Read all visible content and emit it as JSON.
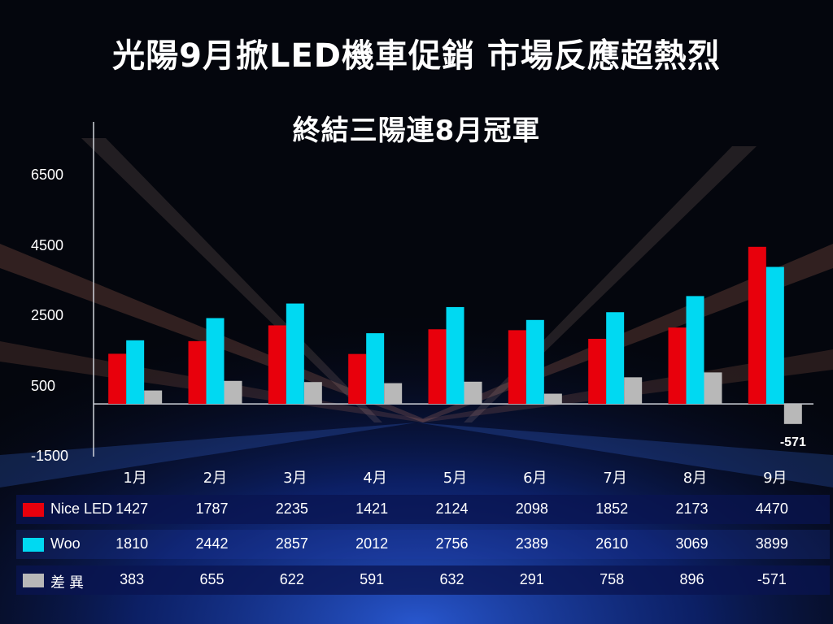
{
  "title": "光陽9月掀LED機車促銷  市場反應超熱烈",
  "subtitle": "終結三陽連8月冠軍",
  "colors": {
    "nice_led": "#e8000c",
    "woo": "#00d9f2",
    "diff": "#b8b8b8",
    "axis": "#cfd3da"
  },
  "chart_data": {
    "type": "bar",
    "categories": [
      "1月",
      "2月",
      "3月",
      "4月",
      "5月",
      "6月",
      "7月",
      "8月",
      "9月"
    ],
    "series": [
      {
        "name": "Nice LED",
        "values": [
          1427,
          1787,
          2235,
          1421,
          2124,
          2098,
          1852,
          2173,
          4470
        ]
      },
      {
        "name": "Woo",
        "values": [
          1810,
          2442,
          2857,
          2012,
          2756,
          2389,
          2610,
          3069,
          3899
        ]
      },
      {
        "name": "差 異",
        "values": [
          383,
          655,
          622,
          591,
          632,
          291,
          758,
          896,
          -571
        ]
      }
    ],
    "yticks": [
      "6500",
      "4500",
      "2500",
      "500",
      "-1500"
    ],
    "ylim": [
      -1500,
      6500
    ],
    "annotation": "-571",
    "legend_position": "table-left"
  }
}
